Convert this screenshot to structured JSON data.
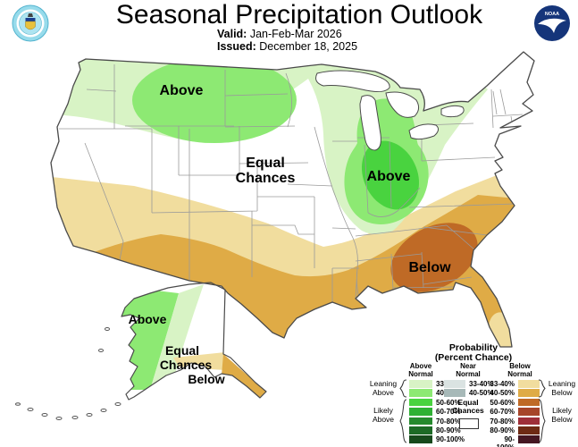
{
  "header": {
    "title": "Seasonal Precipitation Outlook",
    "valid_label": "Valid:",
    "valid_value": "Jan-Feb-Mar 2026",
    "issued_label": "Issued:",
    "issued_value": "December 18, 2025"
  },
  "logos": {
    "left_alt": "US Department of Commerce seal",
    "right_alt": "NOAA seal",
    "noaa_text": "NOAA"
  },
  "map_labels": {
    "nw_above": "Above",
    "midwest_above": "Above",
    "equal_line1": "Equal",
    "equal_line2": "Chances",
    "se_below": "Below",
    "ak_above": "Above",
    "ak_equal_line1": "Equal",
    "ak_equal_line2": "Chances",
    "ak_below": "Below"
  },
  "legend": {
    "title_line1": "Probability",
    "title_line2": "(Percent Chance)",
    "col_above": {
      "header_line1": "Above",
      "header_line2": "Normal"
    },
    "col_near": {
      "header_line1": "Near",
      "header_line2": "Normal"
    },
    "col_below": {
      "header_line1": "Below",
      "header_line2": "Normal"
    },
    "pct_rows": [
      "33-40%",
      "40-50%",
      "50-60%",
      "60-70%",
      "70-80%",
      "80-90%",
      "90-100%"
    ],
    "near_rows": [
      "33-40%",
      "40-50%"
    ],
    "equal_line1": "Equal",
    "equal_line2": "Chances",
    "leaning_above": [
      "Leaning",
      "Above"
    ],
    "likely_above": [
      "Likely",
      "Above"
    ],
    "leaning_below": [
      "Leaning",
      "Below"
    ],
    "likely_below": [
      "Likely",
      "Below"
    ]
  },
  "colors": {
    "above": [
      "#d8f3c5",
      "#8de973",
      "#49d33f",
      "#2fb134",
      "#268a2e",
      "#1d6a26",
      "#17491c"
    ],
    "near": [
      "#dae3e2",
      "#a7b9b8"
    ],
    "below": [
      "#f1dd9e",
      "#dfab46",
      "#bf6a26",
      "#a6452a",
      "#9e2f39",
      "#6e2a14",
      "#451722"
    ],
    "equal_chances": "#ffffff",
    "outline": "#4a4a4a",
    "state_lines": "#9a9a9a"
  }
}
